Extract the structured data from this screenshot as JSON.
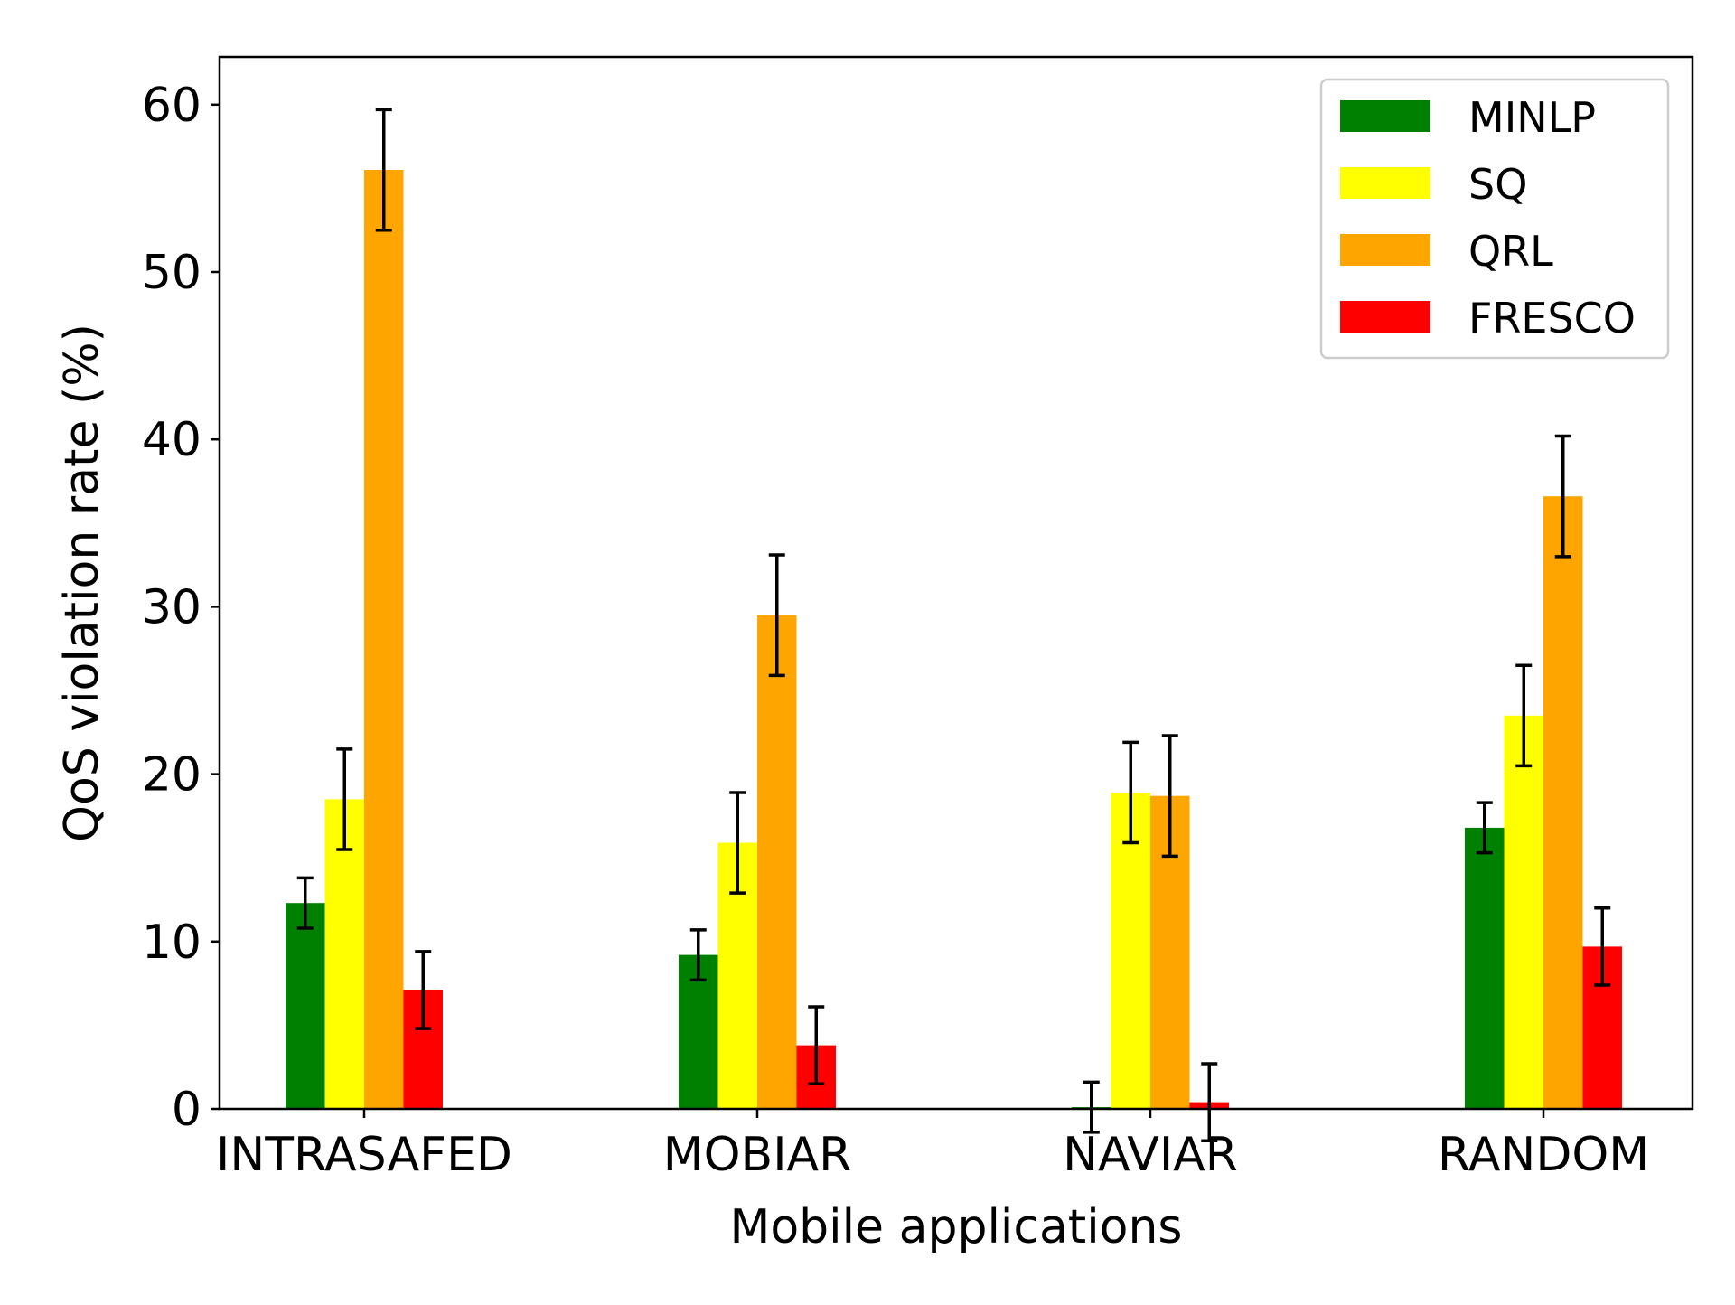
{
  "chart_data": {
    "type": "bar",
    "title": "",
    "xlabel": "Mobile applications",
    "ylabel": "QoS violation rate (%)",
    "categories": [
      "INTRASAFED",
      "MOBIAR",
      "NAVIAR",
      "RANDOM"
    ],
    "ylim": [
      0,
      63
    ],
    "yticks": [
      0,
      10,
      20,
      30,
      40,
      50,
      60
    ],
    "grid": false,
    "legend_position": "top-right",
    "series": [
      {
        "name": "MINLP",
        "color": "#008000",
        "values": [
          12.3,
          9.2,
          0.1,
          16.8
        ],
        "errors": [
          1.5,
          1.5,
          1.5,
          1.5
        ]
      },
      {
        "name": "SQ",
        "color": "#ffff00",
        "values": [
          18.5,
          15.9,
          18.9,
          23.5
        ],
        "errors": [
          3.0,
          3.0,
          3.0,
          3.0
        ]
      },
      {
        "name": "QRL",
        "color": "#ffa500",
        "values": [
          56.1,
          29.5,
          18.7,
          36.6
        ],
        "errors": [
          3.6,
          3.6,
          3.6,
          3.6
        ]
      },
      {
        "name": "FRESCO",
        "color": "#ff0000",
        "values": [
          7.1,
          3.8,
          0.4,
          9.7
        ],
        "errors": [
          2.3,
          2.3,
          2.3,
          2.3
        ]
      }
    ]
  }
}
